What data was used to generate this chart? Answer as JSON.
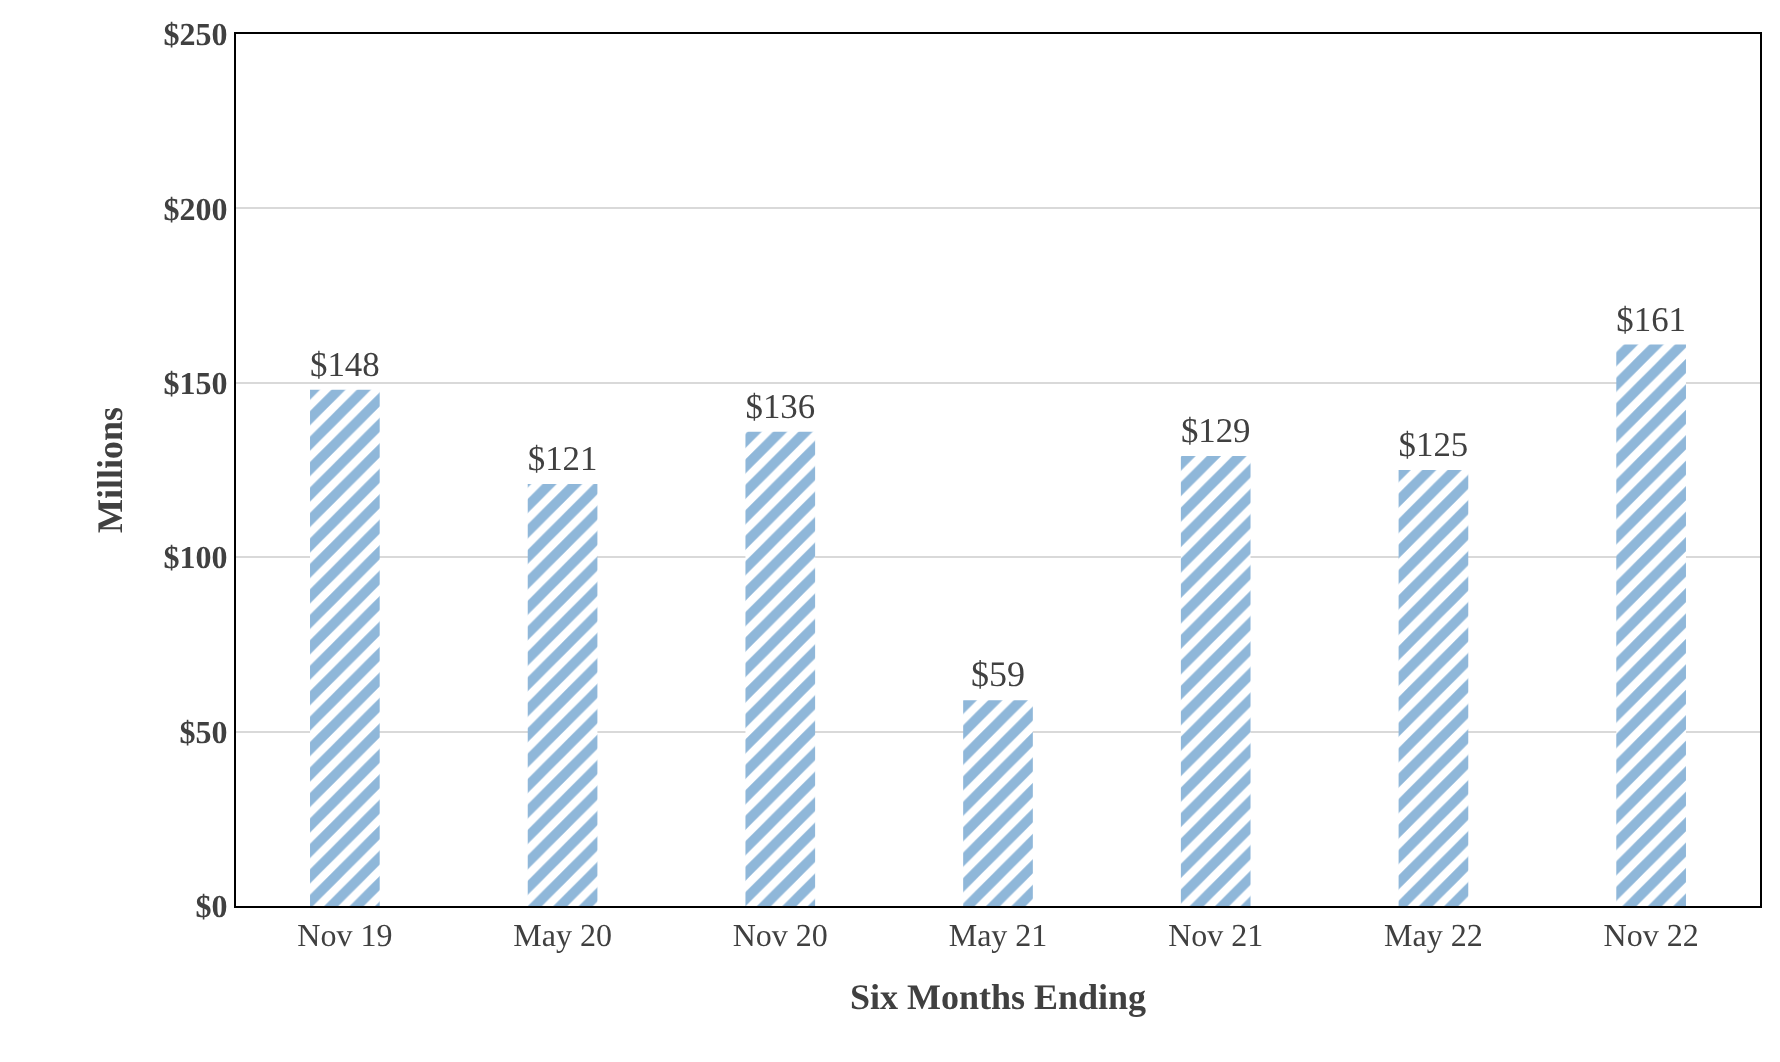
{
  "chart_data": {
    "type": "bar",
    "xlabel": "Six Months Ending",
    "ylabel": "Millions",
    "categories": [
      "Nov 19",
      "May 20",
      "Nov 20",
      "May 21",
      "Nov 21",
      "May 22",
      "Nov 22"
    ],
    "values": [
      148,
      121,
      136,
      59,
      129,
      125,
      161
    ],
    "value_labels": [
      "$148",
      "$121",
      "$136",
      "$59",
      "$129",
      "$125",
      "$161"
    ],
    "color": "#1f6fb4",
    "ylim": [
      0,
      250
    ],
    "yticks": [
      {
        "value": 0,
        "label": "$0"
      },
      {
        "value": 50,
        "label": "$50"
      },
      {
        "value": 100,
        "label": "$100"
      },
      {
        "value": 150,
        "label": "$150"
      },
      {
        "value": 200,
        "label": "$200"
      },
      {
        "value": 250,
        "label": "$250"
      }
    ],
    "grid": "y",
    "legend": false
  }
}
